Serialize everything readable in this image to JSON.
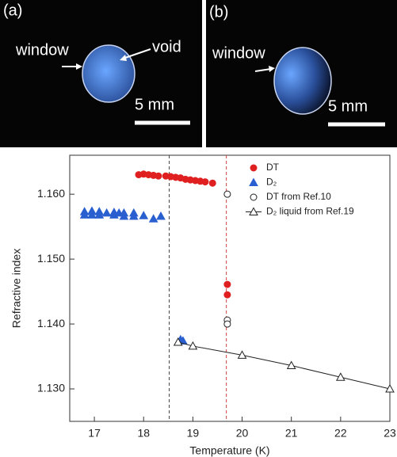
{
  "panels": [
    {
      "label": "(a)",
      "texts": [
        "window",
        "void"
      ],
      "scale": "5 mm"
    },
    {
      "label": "(b)",
      "texts": [
        "window"
      ],
      "scale": "5 mm"
    }
  ],
  "chart_data": {
    "type": "scatter",
    "xlabel": "Temperature (K)",
    "ylabel": "Refractive index",
    "xlim": [
      16.5,
      23
    ],
    "ylim": [
      1.125,
      1.166
    ],
    "xticks": [
      17,
      18,
      19,
      20,
      21,
      22,
      23
    ],
    "yticks": [
      {
        "value": 1.13,
        "label": "1.130"
      },
      {
        "value": 1.14,
        "label": "1.140"
      },
      {
        "value": 1.15,
        "label": "1.150"
      },
      {
        "value": 1.16,
        "label": "1.160"
      }
    ],
    "legend": "upper right",
    "vlines": [
      {
        "x": 18.52,
        "color": "#444444"
      },
      {
        "x": 19.68,
        "color": "#d04040"
      }
    ],
    "series": [
      {
        "name": "DT",
        "color": "#e02020",
        "marker": "circle",
        "filled": true,
        "x": [
          17.9,
          18.0,
          18.1,
          18.2,
          18.3,
          18.45,
          18.55,
          18.65,
          18.75,
          18.85,
          18.95,
          19.05,
          19.15,
          19.25,
          19.4,
          19.7,
          19.7
        ],
        "values": [
          1.163,
          1.1631,
          1.163,
          1.1629,
          1.1628,
          1.1628,
          1.1627,
          1.1626,
          1.1625,
          1.1623,
          1.1622,
          1.1621,
          1.162,
          1.1619,
          1.1617,
          1.1461,
          1.1445
        ]
      },
      {
        "name": "D₂",
        "color": "#2a5fd0",
        "marker": "triangle",
        "filled": true,
        "x": [
          16.8,
          16.8,
          16.95,
          16.95,
          17.1,
          17.1,
          17.25,
          17.4,
          17.4,
          17.5,
          17.6,
          17.6,
          17.8,
          17.8,
          18.0,
          18.2,
          18.35,
          18.75,
          18.8
        ],
        "values": [
          1.1573,
          1.1568,
          1.1574,
          1.1568,
          1.1573,
          1.1568,
          1.1571,
          1.1572,
          1.1568,
          1.1571,
          1.1571,
          1.1566,
          1.1571,
          1.1566,
          1.1567,
          1.1562,
          1.1566,
          1.1376,
          1.1374
        ]
      },
      {
        "name": "DT from Ref.10",
        "color": "#222222",
        "marker": "circle",
        "filled": false,
        "x": [
          19.7,
          19.7,
          19.7
        ],
        "values": [
          1.16,
          1.1406,
          1.14
        ]
      },
      {
        "name": "D₂ liquid from Ref.19",
        "color": "#222222",
        "marker": "triangle",
        "filled": false,
        "line": true,
        "x": [
          18.7,
          19.0,
          20,
          21,
          22,
          23
        ],
        "values": [
          1.1372,
          1.1366,
          1.1352,
          1.1336,
          1.1318,
          1.13
        ]
      }
    ]
  }
}
